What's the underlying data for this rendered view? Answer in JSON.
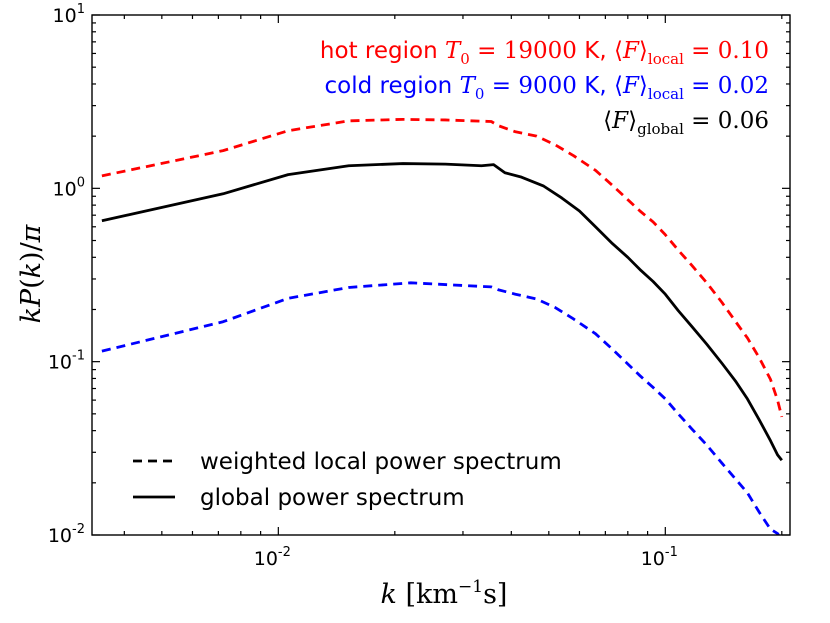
{
  "chart_data": {
    "type": "line",
    "title": "",
    "xlabel": "k [km^-1 s]",
    "ylabel": "kP(k)/π",
    "xscale": "log",
    "yscale": "log",
    "xlim": [
      0.0033,
      0.21
    ],
    "ylim": [
      0.01,
      10
    ],
    "grid": false,
    "x_ticks": [
      {
        "value": 0.01,
        "base": "10",
        "exp": "-2"
      },
      {
        "value": 0.1,
        "base": "10",
        "exp": "-1"
      }
    ],
    "y_ticks": [
      {
        "value": 0.01,
        "base": "10",
        "exp": "-2"
      },
      {
        "value": 0.1,
        "base": "10",
        "exp": "-1"
      },
      {
        "value": 1,
        "base": "10",
        "exp": "0"
      },
      {
        "value": 10,
        "base": "10",
        "exp": "1"
      }
    ],
    "series": [
      {
        "name": "hot region (weighted local power spectrum)",
        "color": "#ff0000",
        "dash": "dashed",
        "points": [
          [
            0.0035,
            1.18
          ],
          [
            0.0072,
            1.65
          ],
          [
            0.0106,
            2.15
          ],
          [
            0.0152,
            2.45
          ],
          [
            0.021,
            2.5
          ],
          [
            0.027,
            2.48
          ],
          [
            0.0355,
            2.43
          ],
          [
            0.037,
            2.3
          ],
          [
            0.041,
            2.12
          ],
          [
            0.0465,
            2.0
          ],
          [
            0.052,
            1.78
          ],
          [
            0.058,
            1.54
          ],
          [
            0.066,
            1.27
          ],
          [
            0.073,
            1.04
          ],
          [
            0.08,
            0.86
          ],
          [
            0.086,
            0.74
          ],
          [
            0.093,
            0.64
          ],
          [
            0.1,
            0.54
          ],
          [
            0.108,
            0.44
          ],
          [
            0.117,
            0.36
          ],
          [
            0.128,
            0.285
          ],
          [
            0.14,
            0.22
          ],
          [
            0.152,
            0.17
          ],
          [
            0.163,
            0.137
          ],
          [
            0.175,
            0.105
          ],
          [
            0.187,
            0.079
          ],
          [
            0.195,
            0.06
          ],
          [
            0.2,
            0.048
          ]
        ]
      },
      {
        "name": "cold region (weighted local power spectrum)",
        "color": "#0000ff",
        "dash": "dashed",
        "points": [
          [
            0.0035,
            0.115
          ],
          [
            0.0072,
            0.17
          ],
          [
            0.0106,
            0.232
          ],
          [
            0.0152,
            0.268
          ],
          [
            0.022,
            0.285
          ],
          [
            0.0355,
            0.27
          ],
          [
            0.037,
            0.26
          ],
          [
            0.041,
            0.245
          ],
          [
            0.0465,
            0.23
          ],
          [
            0.052,
            0.205
          ],
          [
            0.058,
            0.176
          ],
          [
            0.066,
            0.145
          ],
          [
            0.073,
            0.118
          ],
          [
            0.08,
            0.097
          ],
          [
            0.086,
            0.083
          ],
          [
            0.093,
            0.071
          ],
          [
            0.1,
            0.061
          ],
          [
            0.108,
            0.05
          ],
          [
            0.117,
            0.041
          ],
          [
            0.128,
            0.033
          ],
          [
            0.14,
            0.026
          ],
          [
            0.152,
            0.021
          ],
          [
            0.163,
            0.0175
          ],
          [
            0.175,
            0.0135
          ],
          [
            0.187,
            0.0108
          ],
          [
            0.195,
            0.0102
          ],
          [
            0.2,
            0.0093
          ]
        ]
      },
      {
        "name": "global power spectrum",
        "color": "#000000",
        "dash": "solid",
        "points": [
          [
            0.0035,
            0.65
          ],
          [
            0.0072,
            0.93
          ],
          [
            0.0106,
            1.2
          ],
          [
            0.0152,
            1.35
          ],
          [
            0.021,
            1.39
          ],
          [
            0.027,
            1.38
          ],
          [
            0.0335,
            1.35
          ],
          [
            0.036,
            1.37
          ],
          [
            0.0385,
            1.23
          ],
          [
            0.0425,
            1.16
          ],
          [
            0.0485,
            1.03
          ],
          [
            0.054,
            0.88
          ],
          [
            0.06,
            0.74
          ],
          [
            0.066,
            0.6
          ],
          [
            0.073,
            0.48
          ],
          [
            0.08,
            0.4
          ],
          [
            0.086,
            0.34
          ],
          [
            0.093,
            0.29
          ],
          [
            0.1,
            0.245
          ],
          [
            0.108,
            0.197
          ],
          [
            0.117,
            0.16
          ],
          [
            0.128,
            0.126
          ],
          [
            0.14,
            0.098
          ],
          [
            0.152,
            0.077
          ],
          [
            0.163,
            0.061
          ],
          [
            0.175,
            0.046
          ],
          [
            0.187,
            0.035
          ],
          [
            0.195,
            0.029
          ],
          [
            0.2,
            0.027
          ]
        ]
      }
    ],
    "legend": {
      "placement": "lower-left",
      "entries": [
        {
          "label": "weighted local power spectrum",
          "style": "dashed"
        },
        {
          "label": "global power spectrum",
          "style": "solid"
        }
      ]
    },
    "annotations": [
      {
        "name": "hot",
        "prefix": "hot region ",
        "T0": "19000",
        "unit": "K,",
        "F_label": "local",
        "F_value": "0.10",
        "color": "#ff0000"
      },
      {
        "name": "cold",
        "prefix": "cold region ",
        "T0": "9000",
        "unit": "K,",
        "F_label": "local",
        "F_value": "0.02",
        "color": "#0000ff"
      },
      {
        "name": "global",
        "F_label": "global",
        "F_value": "0.06",
        "color": "#000000"
      }
    ]
  }
}
